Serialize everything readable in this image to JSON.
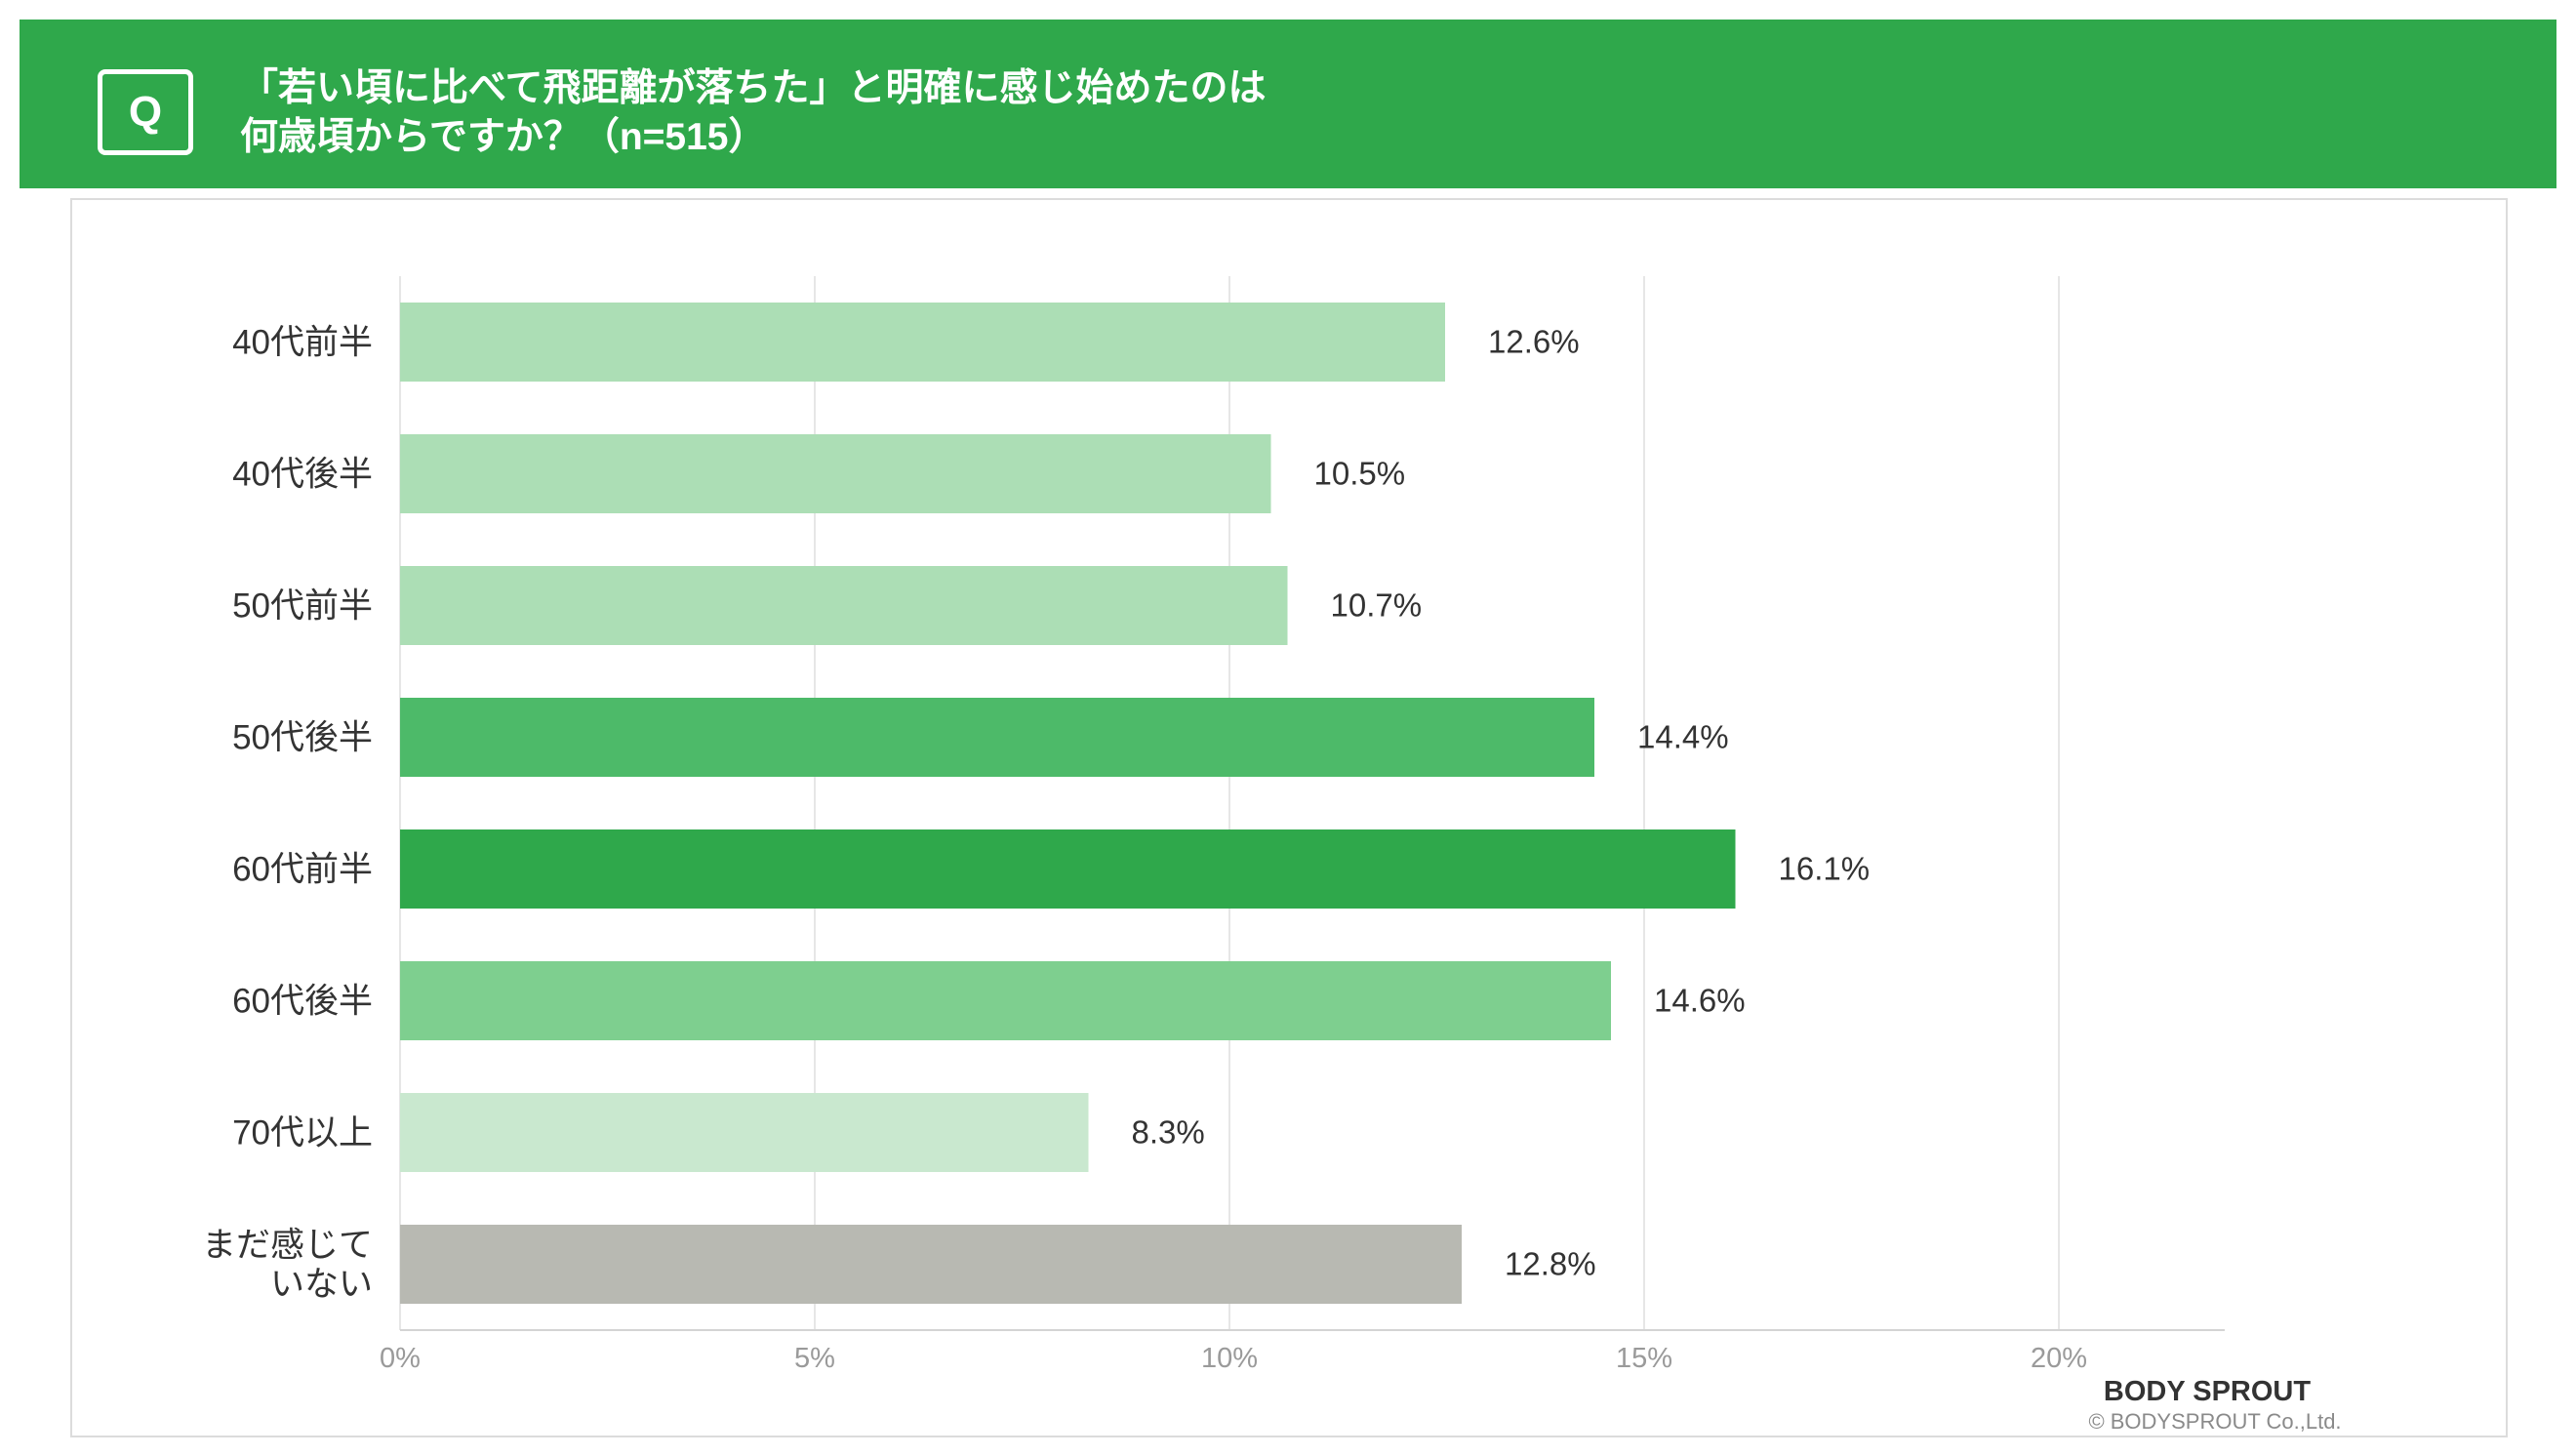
{
  "header": {
    "q_label": "Q",
    "title_line1": "「若い頃に比べて飛距離が落ちた」と明確に感じ始めたのは",
    "title_line2": "何歳頃からですか？（n=515）"
  },
  "footer": {
    "brand": "BODY SPROUT",
    "copyright": "© BODYSPROUT Co.,Ltd."
  },
  "colors": {
    "header_bg": "#2fa84b",
    "grid": "#e6e6e6",
    "axis_text": "#9a9a9a",
    "label_text": "#333333"
  },
  "chart_data": {
    "type": "bar",
    "orientation": "horizontal",
    "title": "「若い頃に比べて飛距離が落ちた」と明確に感じ始めたのは何歳頃からですか？（n=515）",
    "categories": [
      [
        "40代前半"
      ],
      [
        "40代後半"
      ],
      [
        "50代前半"
      ],
      [
        "50代後半"
      ],
      [
        "60代前半"
      ],
      [
        "60代後半"
      ],
      [
        "70代以上"
      ],
      [
        "まだ感じて",
        "いない"
      ]
    ],
    "values": [
      12.6,
      10.5,
      10.7,
      14.4,
      16.1,
      14.6,
      8.3,
      12.8
    ],
    "value_labels": [
      "12.6%",
      "10.5%",
      "10.7%",
      "14.4%",
      "16.1%",
      "14.6%",
      "8.3%",
      "12.8%"
    ],
    "bar_colors": [
      "#acdeb5",
      "#acdeb5",
      "#acdeb5",
      "#4dba69",
      "#2fa84b",
      "#7ecf8f",
      "#c9e8cf",
      "#b8b9b2"
    ],
    "xlim": [
      0,
      22
    ],
    "x_ticks": [
      0,
      5,
      10,
      15,
      20
    ],
    "x_tick_labels": [
      "0%",
      "5%",
      "10%",
      "15%",
      "20%"
    ],
    "grid": true,
    "xlabel": "",
    "ylabel": ""
  }
}
